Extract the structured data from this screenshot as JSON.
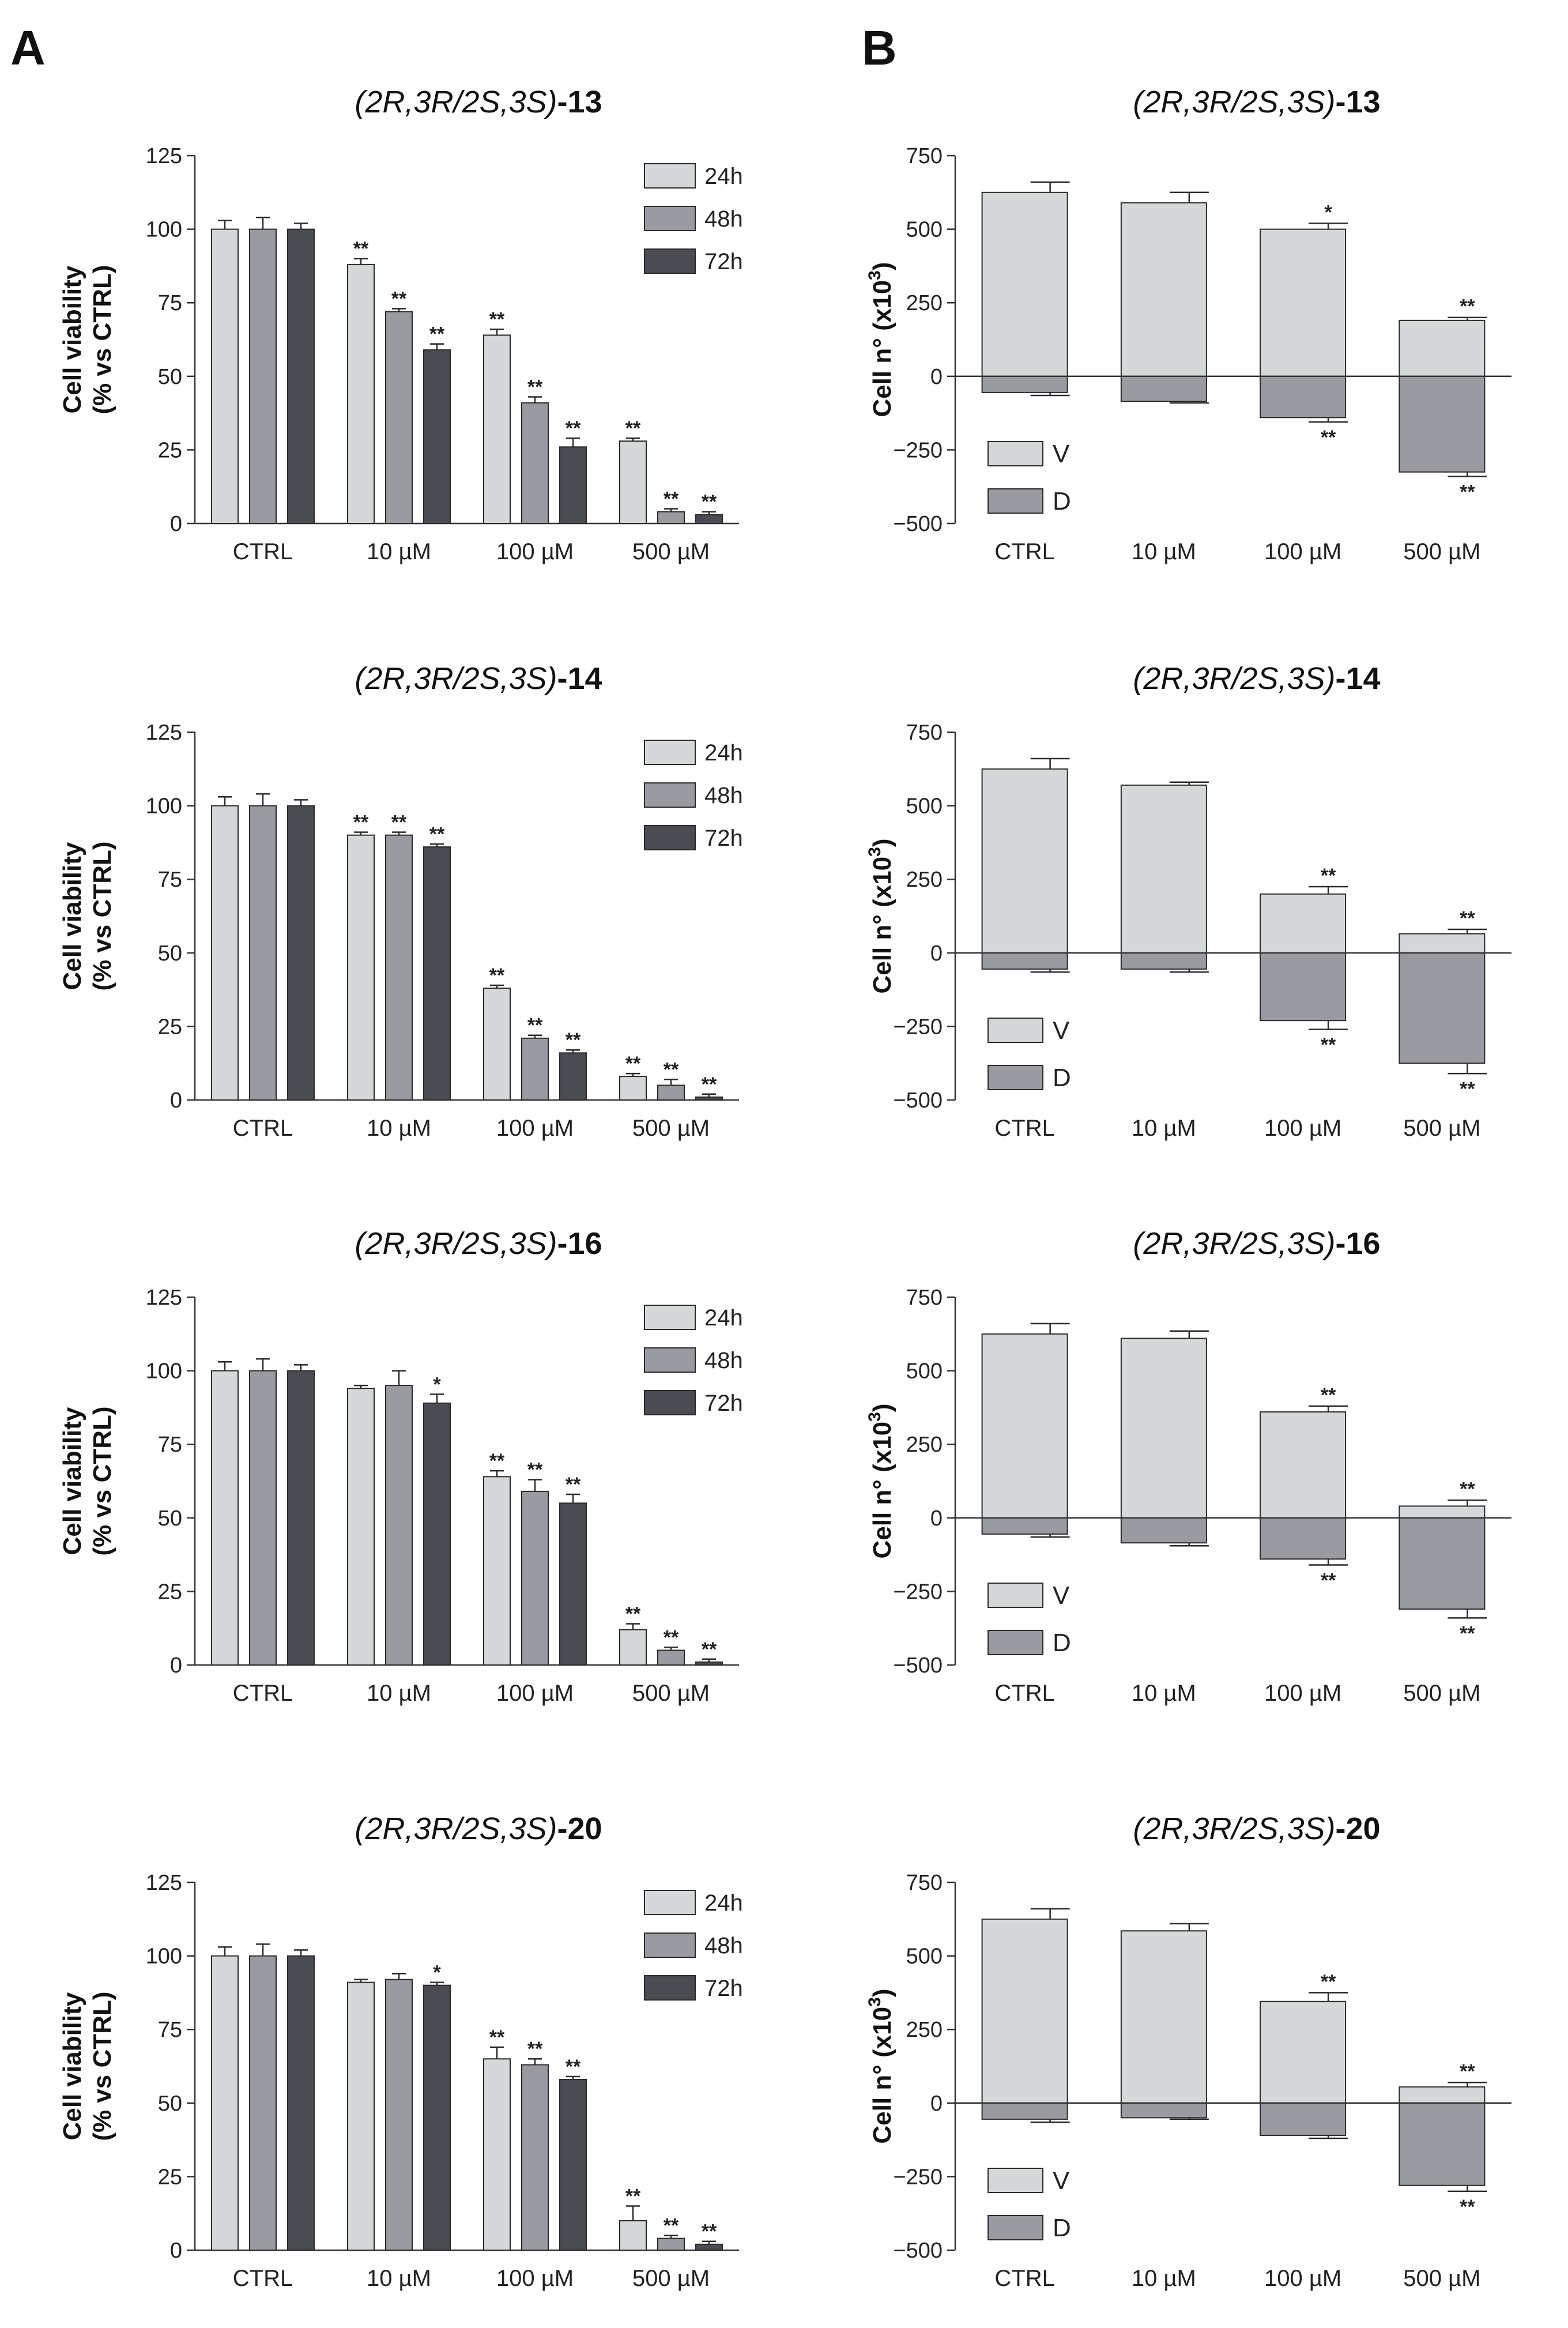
{
  "panel_labels": [
    "A",
    "B"
  ],
  "colors": {
    "light": "#d5d8d8",
    "medium": "#999ba0",
    "dark": "#4b4c52",
    "viable": "#d5d8d8",
    "dead": "#999ba0",
    "edge": "#2a2a2a"
  },
  "chart_data": [
    {
      "panel": "A",
      "type": "bar",
      "title": "(2R,3R/2S,3S)",
      "compound": "-13",
      "ylabel": "Cell viability\n(% vs CTRL)",
      "ylim": [
        0,
        125
      ],
      "yticks": [
        0,
        25,
        50,
        75,
        100,
        125
      ],
      "categories": [
        "CTRL",
        "10 µM",
        "100 µM",
        "500 µM"
      ],
      "series": [
        {
          "name": "24h",
          "values": [
            100,
            88,
            64,
            28
          ],
          "errors": [
            3,
            2,
            2,
            1
          ],
          "sig": [
            "",
            "**",
            "**",
            "**"
          ]
        },
        {
          "name": "48h",
          "values": [
            100,
            72,
            41,
            4
          ],
          "errors": [
            4,
            1,
            2,
            1
          ],
          "sig": [
            "",
            "**",
            "**",
            "**"
          ]
        },
        {
          "name": "72h",
          "values": [
            100,
            59,
            26,
            3
          ],
          "errors": [
            2,
            2,
            3,
            1
          ],
          "sig": [
            "",
            "**",
            "**",
            "**"
          ]
        }
      ]
    },
    {
      "panel": "B",
      "type": "bar",
      "title": "(2R,3R/2S,3S)",
      "compound": "-13",
      "ylabel": "Cell n° (x10",
      "ylabel_sup": "3",
      "ylabel_end": ")",
      "ylim": [
        -500,
        750
      ],
      "yticks": [
        -500,
        -250,
        0,
        250,
        500,
        750
      ],
      "categories": [
        "CTRL",
        "10 µM",
        "100 µM",
        "500 µM"
      ],
      "series": [
        {
          "name": "V",
          "values": [
            625,
            590,
            500,
            190
          ],
          "errors": [
            35,
            35,
            20,
            10
          ],
          "sig": [
            "",
            "",
            "*",
            "**"
          ]
        },
        {
          "name": "D",
          "values": [
            -55,
            -85,
            -140,
            -325
          ],
          "errors": [
            10,
            5,
            15,
            15
          ],
          "sig": [
            "",
            "",
            "**",
            "**"
          ]
        }
      ]
    },
    {
      "panel": "A",
      "type": "bar",
      "title": "(2R,3R/2S,3S)",
      "compound": "-14",
      "ylabel": "Cell viability\n(% vs CTRL)",
      "ylim": [
        0,
        125
      ],
      "yticks": [
        0,
        25,
        50,
        75,
        100,
        125
      ],
      "categories": [
        "CTRL",
        "10 µM",
        "100 µM",
        "500 µM"
      ],
      "series": [
        {
          "name": "24h",
          "values": [
            100,
            90,
            38,
            8
          ],
          "errors": [
            3,
            1,
            1,
            1
          ],
          "sig": [
            "",
            "**",
            "**",
            "**"
          ]
        },
        {
          "name": "48h",
          "values": [
            100,
            90,
            21,
            5
          ],
          "errors": [
            4,
            1,
            1,
            2
          ],
          "sig": [
            "",
            "**",
            "**",
            "**"
          ]
        },
        {
          "name": "72h",
          "values": [
            100,
            86,
            16,
            1
          ],
          "errors": [
            2,
            1,
            1,
            1
          ],
          "sig": [
            "",
            "**",
            "**",
            "**"
          ]
        }
      ]
    },
    {
      "panel": "B",
      "type": "bar",
      "title": "(2R,3R/2S,3S)",
      "compound": "-14",
      "ylabel": "Cell n° (x10",
      "ylabel_sup": "3",
      "ylabel_end": ")",
      "ylim": [
        -500,
        750
      ],
      "yticks": [
        -500,
        -250,
        0,
        250,
        500,
        750
      ],
      "categories": [
        "CTRL",
        "10 µM",
        "100 µM",
        "500 µM"
      ],
      "series": [
        {
          "name": "V",
          "values": [
            625,
            570,
            200,
            65
          ],
          "errors": [
            35,
            10,
            25,
            15
          ],
          "sig": [
            "",
            "",
            "**",
            "**"
          ]
        },
        {
          "name": "D",
          "values": [
            -55,
            -55,
            -230,
            -375
          ],
          "errors": [
            10,
            10,
            30,
            35
          ],
          "sig": [
            "",
            "",
            "**",
            "**"
          ]
        }
      ]
    },
    {
      "panel": "A",
      "type": "bar",
      "title": "(2R,3R/2S,3S)",
      "compound": "-16",
      "ylabel": "Cell viability\n(% vs CTRL)",
      "ylim": [
        0,
        125
      ],
      "yticks": [
        0,
        25,
        50,
        75,
        100,
        125
      ],
      "categories": [
        "CTRL",
        "10 µM",
        "100 µM",
        "500 µM"
      ],
      "series": [
        {
          "name": "24h",
          "values": [
            100,
            94,
            64,
            12
          ],
          "errors": [
            3,
            1,
            2,
            2
          ],
          "sig": [
            "",
            "",
            "**",
            "**"
          ]
        },
        {
          "name": "48h",
          "values": [
            100,
            95,
            59,
            5
          ],
          "errors": [
            4,
            5,
            4,
            1
          ],
          "sig": [
            "",
            "",
            "**",
            "**"
          ]
        },
        {
          "name": "72h",
          "values": [
            100,
            89,
            55,
            1
          ],
          "errors": [
            2,
            3,
            3,
            1
          ],
          "sig": [
            "",
            "*",
            "**",
            "**"
          ]
        }
      ]
    },
    {
      "panel": "B",
      "type": "bar",
      "title": "(2R,3R/2S,3S)",
      "compound": "-16",
      "ylabel": "Cell n° (x10",
      "ylabel_sup": "3",
      "ylabel_end": ")",
      "ylim": [
        -500,
        750
      ],
      "yticks": [
        -500,
        -250,
        0,
        250,
        500,
        750
      ],
      "categories": [
        "CTRL",
        "10 µM",
        "100 µM",
        "500 µM"
      ],
      "series": [
        {
          "name": "V",
          "values": [
            625,
            610,
            360,
            40
          ],
          "errors": [
            35,
            25,
            20,
            20
          ],
          "sig": [
            "",
            "",
            "**",
            "**"
          ]
        },
        {
          "name": "D",
          "values": [
            -55,
            -85,
            -140,
            -310
          ],
          "errors": [
            10,
            10,
            20,
            30
          ],
          "sig": [
            "",
            "",
            "**",
            "**"
          ]
        }
      ]
    },
    {
      "panel": "A",
      "type": "bar",
      "title": "(2R,3R/2S,3S)",
      "compound": "-20",
      "ylabel": "Cell viability\n(% vs CTRL)",
      "ylim": [
        0,
        125
      ],
      "yticks": [
        0,
        25,
        50,
        75,
        100,
        125
      ],
      "categories": [
        "CTRL",
        "10 µM",
        "100 µM",
        "500 µM"
      ],
      "series": [
        {
          "name": "24h",
          "values": [
            100,
            91,
            65,
            10
          ],
          "errors": [
            3,
            1,
            4,
            5
          ],
          "sig": [
            "",
            "",
            "**",
            "**"
          ]
        },
        {
          "name": "48h",
          "values": [
            100,
            92,
            63,
            4
          ],
          "errors": [
            4,
            2,
            2,
            1
          ],
          "sig": [
            "",
            "",
            "**",
            "**"
          ]
        },
        {
          "name": "72h",
          "values": [
            100,
            90,
            58,
            2
          ],
          "errors": [
            2,
            1,
            1,
            1
          ],
          "sig": [
            "",
            "*",
            "**",
            "**"
          ]
        }
      ]
    },
    {
      "panel": "B",
      "type": "bar",
      "title": "(2R,3R/2S,3S)",
      "compound": "-20",
      "ylabel": "Cell n° (x10",
      "ylabel_sup": "3",
      "ylabel_end": ")",
      "ylim": [
        -500,
        750
      ],
      "yticks": [
        -500,
        -250,
        0,
        250,
        500,
        750
      ],
      "categories": [
        "CTRL",
        "10 µM",
        "100 µM",
        "500 µM"
      ],
      "series": [
        {
          "name": "V",
          "values": [
            625,
            585,
            345,
            55
          ],
          "errors": [
            35,
            25,
            30,
            15
          ],
          "sig": [
            "",
            "",
            "**",
            "**"
          ]
        },
        {
          "name": "D",
          "values": [
            -55,
            -50,
            -110,
            -280
          ],
          "errors": [
            10,
            5,
            10,
            20
          ],
          "sig": [
            "",
            "",
            "",
            "**"
          ]
        }
      ]
    }
  ]
}
